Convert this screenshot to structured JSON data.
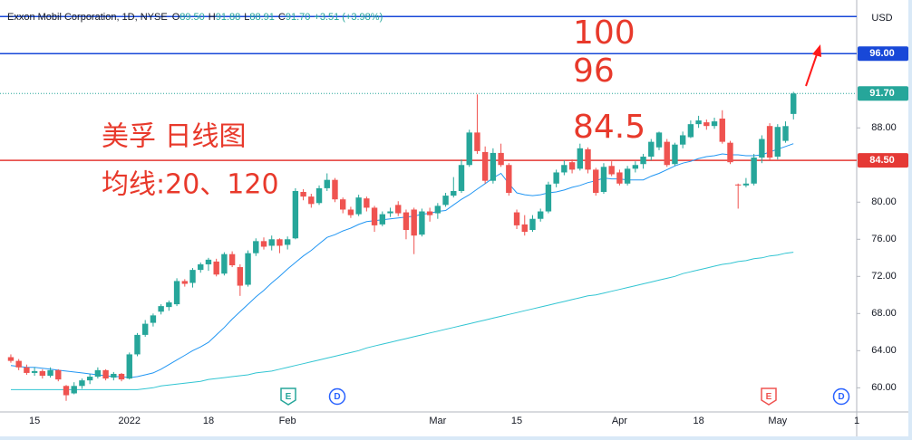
{
  "chart_data": {
    "type": "candlestick",
    "header": {
      "name": "Exxon Mobil Corporation, 1D, NYSE",
      "fields": [
        {
          "label": "O",
          "value": "89.50"
        },
        {
          "label": "H",
          "value": "91.88"
        },
        {
          "label": "L",
          "value": "88.91"
        },
        {
          "label": "C",
          "value": "91.70"
        }
      ],
      "change": "+3.51 (+3.98%)"
    },
    "currency": "USD",
    "annotations": [
      "100",
      "96",
      "84.5",
      "美孚 日线图",
      "均线:20、120"
    ],
    "categories": [
      null,
      null,
      null,
      "15",
      null,
      null,
      null,
      null,
      null,
      null,
      null,
      null,
      null,
      null,
      null,
      "2022",
      null,
      null,
      null,
      null,
      null,
      null,
      null,
      null,
      null,
      "18",
      null,
      null,
      null,
      null,
      null,
      null,
      null,
      null,
      null,
      "Feb",
      null,
      null,
      null,
      null,
      null,
      null,
      null,
      null,
      null,
      null,
      null,
      null,
      null,
      null,
      null,
      null,
      null,
      null,
      "Mar",
      null,
      null,
      null,
      null,
      null,
      null,
      null,
      null,
      null,
      "15",
      null,
      null,
      null,
      null,
      null,
      null,
      null,
      null,
      null,
      null,
      null,
      null,
      "Apr",
      null,
      null,
      null,
      null,
      null,
      null,
      null,
      null,
      null,
      "18",
      null,
      null,
      null,
      null,
      null,
      null,
      null,
      null,
      null,
      "May",
      null,
      null,
      null,
      null,
      null,
      null,
      null,
      null,
      null,
      "1"
    ],
    "open": [
      63.3,
      62.9,
      62.2,
      61.6,
      61.8,
      61.3,
      61.9,
      60.2,
      59.4,
      60.2,
      60.8,
      61.2,
      61.9,
      61.1,
      61.5,
      61.0,
      63.6,
      65.7,
      67.0,
      68.2,
      68.7,
      69.0,
      71.5,
      71.3,
      72.7,
      73.3,
      73.6,
      72.3,
      74.4,
      73.0,
      71.1,
      74.5,
      75.8,
      75.3,
      76.0,
      75.4,
      76.1,
      81.1,
      80.6,
      79.9,
      81.5,
      82.4,
      80.3,
      79.2,
      78.7,
      80.4,
      79.4,
      77.6,
      78.8,
      79.7,
      78.9,
      79.2,
      76.5,
      79.0,
      78.8,
      79.7,
      80.7,
      81.2,
      84.0,
      87.5,
      85.4,
      82.3,
      85.3,
      84.0,
      78.9,
      77.6,
      77.0,
      78.2,
      79.0,
      82.0,
      83.2,
      84.3,
      83.6,
      85.7,
      83.5,
      81.1,
      83.9,
      83.2,
      82.0,
      83.6,
      84.1,
      84.9,
      85.9,
      86.5,
      84.1,
      86.2,
      87.0,
      88.4,
      88.6,
      88.2,
      89.0,
      86.4,
      81.9,
      81.8,
      82.0,
      84.8,
      88.2,
      84.9,
      86.6,
      89.5,
      null,
      null,
      null,
      null,
      null,
      null,
      null,
      null
    ],
    "high": [
      63.6,
      63.1,
      62.5,
      62.2,
      62.0,
      62.2,
      62.0,
      60.3,
      60.6,
      61.0,
      61.5,
      62.2,
      62.0,
      61.7,
      61.6,
      63.8,
      65.9,
      67.3,
      68.0,
      69.0,
      69.4,
      71.8,
      71.7,
      72.9,
      73.5,
      74.0,
      73.9,
      74.6,
      74.7,
      73.3,
      74.8,
      76.1,
      76.2,
      76.4,
      76.1,
      76.3,
      81.5,
      81.4,
      80.9,
      81.8,
      83.1,
      82.6,
      80.5,
      79.5,
      80.8,
      80.6,
      79.6,
      79.0,
      79.4,
      80.1,
      79.2,
      79.4,
      79.3,
      79.4,
      79.9,
      81.0,
      82.7,
      84.6,
      87.8,
      91.6,
      86.0,
      85.8,
      86.3,
      84.2,
      79.2,
      78.6,
      78.6,
      79.3,
      82.2,
      83.5,
      84.5,
      84.6,
      86.3,
      85.9,
      83.7,
      84.2,
      84.4,
      83.5,
      83.9,
      84.4,
      85.2,
      86.8,
      87.6,
      86.8,
      86.4,
      87.6,
      88.8,
      89.3,
      88.9,
      89.1,
      89.9,
      86.6,
      82.0,
      82.6,
      85.2,
      87.2,
      88.5,
      88.4,
      88.7,
      91.88,
      null,
      null,
      null,
      null,
      null,
      null,
      null,
      null
    ],
    "low": [
      62.7,
      61.9,
      61.4,
      61.3,
      61.0,
      61.1,
      60.7,
      58.6,
      59.3,
      59.9,
      60.4,
      61.0,
      60.8,
      60.8,
      60.7,
      60.9,
      63.4,
      65.5,
      66.6,
      67.9,
      68.3,
      68.8,
      70.9,
      70.8,
      72.4,
      72.6,
      72.0,
      72.1,
      73.0,
      69.9,
      70.9,
      74.2,
      74.9,
      74.8,
      74.5,
      74.9,
      76.0,
      80.2,
      79.4,
      79.7,
      81.2,
      80.0,
      78.8,
      78.3,
      78.5,
      79.0,
      76.8,
      77.4,
      78.4,
      78.5,
      76.0,
      74.4,
      76.3,
      77.9,
      78.2,
      79.5,
      80.5,
      81.0,
      83.8,
      85.2,
      82.0,
      82.0,
      83.8,
      80.7,
      77.1,
      76.4,
      76.8,
      77.9,
      78.8,
      81.6,
      82.9,
      83.1,
      83.4,
      83.1,
      80.7,
      80.9,
      82.8,
      81.8,
      81.8,
      83.2,
      83.6,
      84.5,
      85.6,
      83.8,
      83.9,
      85.8,
      86.9,
      88.0,
      87.8,
      87.9,
      86.3,
      84.1,
      79.3,
      81.6,
      81.8,
      84.2,
      84.5,
      84.6,
      86.4,
      88.91,
      null,
      null,
      null,
      null,
      null,
      null,
      null,
      null
    ],
    "close": [
      62.9,
      62.2,
      61.6,
      61.8,
      61.3,
      61.9,
      60.9,
      59.2,
      60.2,
      60.8,
      61.2,
      61.9,
      61.0,
      61.5,
      60.9,
      63.6,
      65.7,
      66.9,
      67.8,
      68.8,
      69.2,
      71.5,
      71.2,
      72.7,
      73.3,
      73.8,
      72.2,
      74.4,
      73.2,
      71.0,
      74.5,
      75.8,
      75.2,
      76.0,
      75.3,
      76.0,
      81.2,
      80.6,
      79.8,
      81.5,
      82.4,
      80.3,
      79.2,
      78.6,
      80.5,
      79.4,
      77.5,
      78.7,
      79.0,
      78.8,
      77.0,
      76.4,
      79.0,
      78.6,
      79.6,
      80.7,
      81.2,
      84.0,
      87.5,
      85.5,
      82.3,
      85.3,
      84.0,
      81.0,
      77.5,
      76.8,
      78.2,
      79.0,
      81.9,
      83.2,
      84.0,
      83.5,
      85.8,
      83.5,
      81.0,
      83.8,
      83.0,
      82.0,
      83.6,
      84.0,
      84.9,
      86.5,
      87.5,
      84.0,
      86.2,
      87.2,
      88.4,
      88.8,
      88.2,
      88.7,
      86.5,
      84.3,
      81.8,
      82.0,
      84.8,
      86.8,
      84.8,
      88.1,
      88.19,
      91.7,
      null,
      null,
      null,
      null,
      null,
      null,
      null,
      null
    ],
    "up_color": "#26a69a",
    "down_color": "#ef5350",
    "series": [
      {
        "color": "#2196f3",
        "values": [
          62.4,
          62.3,
          62.2,
          62.2,
          62.1,
          62.0,
          61.9,
          61.8,
          61.7,
          61.6,
          61.5,
          61.4,
          61.3,
          61.2,
          61.2,
          61.1,
          61.2,
          61.4,
          61.6,
          62.0,
          62.5,
          63.0,
          63.5,
          64.0,
          64.4,
          64.9,
          65.7,
          66.5,
          67.4,
          68.2,
          69.0,
          69.8,
          70.5,
          71.3,
          72.0,
          72.8,
          73.5,
          74.2,
          74.8,
          75.5,
          76.2,
          76.5,
          76.9,
          77.2,
          77.6,
          77.9,
          78.0,
          78.1,
          78.2,
          78.3,
          78.4,
          78.5,
          78.7,
          78.8,
          79.0,
          79.1,
          79.7,
          80.3,
          80.8,
          81.4,
          82.0,
          82.6,
          83.1,
          82.0,
          81.0,
          80.8,
          80.7,
          80.8,
          81.0,
          81.1,
          81.3,
          81.6,
          81.8,
          82.1,
          82.3,
          82.6,
          82.5,
          82.5,
          82.4,
          82.4,
          82.4,
          82.8,
          83.1,
          83.5,
          83.9,
          84.2,
          84.4,
          84.7,
          84.9,
          85.0,
          85.2,
          85.1,
          85.1,
          85.0,
          85.0,
          85.1,
          85.4,
          85.7,
          86.0,
          86.3,
          null,
          null,
          null,
          null,
          null,
          null,
          null,
          null
        ]
      },
      {
        "color": "#32c5d2",
        "values": [
          59.8,
          59.8,
          59.8,
          59.8,
          59.8,
          59.8,
          59.8,
          59.8,
          59.8,
          59.8,
          59.8,
          59.8,
          59.8,
          59.8,
          59.8,
          59.8,
          59.8,
          59.9,
          60.0,
          60.2,
          60.3,
          60.4,
          60.5,
          60.6,
          60.7,
          60.9,
          61.0,
          61.1,
          61.2,
          61.3,
          61.4,
          61.6,
          61.7,
          61.8,
          62.0,
          62.2,
          62.4,
          62.6,
          62.8,
          63.0,
          63.2,
          63.4,
          63.6,
          63.8,
          64.0,
          64.3,
          64.5,
          64.7,
          64.9,
          65.1,
          65.3,
          65.5,
          65.7,
          65.9,
          66.1,
          66.3,
          66.5,
          66.7,
          66.9,
          67.1,
          67.3,
          67.5,
          67.7,
          67.9,
          68.1,
          68.3,
          68.5,
          68.7,
          68.9,
          69.1,
          69.3,
          69.5,
          69.7,
          69.9,
          70.0,
          70.2,
          70.4,
          70.6,
          70.8,
          71.0,
          71.2,
          71.4,
          71.6,
          71.8,
          72.0,
          72.3,
          72.5,
          72.7,
          72.9,
          73.1,
          73.3,
          73.4,
          73.6,
          73.7,
          73.9,
          74.0,
          74.2,
          74.3,
          74.5,
          74.6,
          null,
          null,
          null,
          null,
          null,
          null,
          null,
          null
        ]
      }
    ],
    "levels": [
      {
        "value": 100,
        "color": "#1848d8"
      },
      {
        "value": 96,
        "label": "96.00",
        "color": "#1848d8"
      },
      {
        "value": 84.5,
        "label": "84.50",
        "color": "#e53935"
      }
    ],
    "last_price": {
      "value": 91.7,
      "label": "91.70",
      "color": "#26a69a"
    },
    "ylim": [
      57.4,
      100.8
    ],
    "yticks": [
      {
        "value": 60,
        "label": "60.00"
      },
      {
        "value": 64,
        "label": "64.00"
      },
      {
        "value": 68,
        "label": "68.00"
      },
      {
        "value": 72,
        "label": "72.00"
      },
      {
        "value": 76,
        "label": "76.00"
      },
      {
        "value": 80,
        "label": "80.00"
      },
      {
        "value": 88,
        "label": "88.00"
      }
    ],
    "events": [
      {
        "label": "E",
        "color": "#26a69a"
      },
      {
        "label": "D",
        "color": "#2962ff"
      },
      {
        "label": "E",
        "color": "#ef5350"
      },
      {
        "label": "D",
        "color": "#2962ff"
      }
    ]
  }
}
